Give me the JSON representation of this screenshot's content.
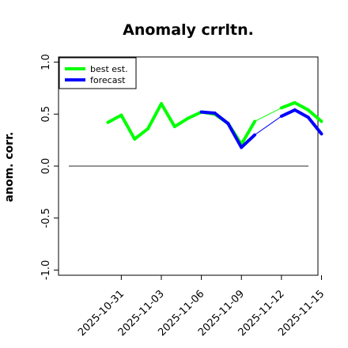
{
  "chart_data": {
    "type": "line",
    "title": "Anomaly crrltn.",
    "xlabel": "",
    "ylabel": "anom. corr.",
    "ylim": [
      -1.05,
      1.05
    ],
    "yticks": [
      -1.0,
      -0.5,
      0.0,
      0.5,
      1.0
    ],
    "ytick_labels": [
      "-1.0",
      "-0.5",
      "0.0",
      "0.5",
      "1.0"
    ],
    "xlim": [
      "2025-10-29",
      "2025-11-15"
    ],
    "xticks": [
      "2025-10-31",
      "2025-11-03",
      "2025-11-06",
      "2025-11-09",
      "2025-11-12",
      "2025-11-15"
    ],
    "xtick_labels": [
      "2025-10-31",
      "2025-11-03",
      "2025-11-06",
      "2025-11-09",
      "2025-11-12",
      "2025-11-15"
    ],
    "highlighted_xtick": "2025-11-06",
    "highlight_color": "#2e8b2e",
    "reference_line": 0.0,
    "grid": false,
    "legend_position": "top-left",
    "series": [
      {
        "name": "best est.",
        "color": "#00ff00",
        "x": [
          "2025-10-30",
          "2025-10-31",
          "2025-11-01",
          "2025-11-02",
          "2025-11-03",
          "2025-11-04",
          "2025-11-05",
          "2025-11-06",
          "2025-11-07",
          "2025-11-08",
          "2025-11-09",
          "2025-11-10",
          "2025-11-12",
          "2025-11-13",
          "2025-11-14",
          "2025-11-15"
        ],
        "y": [
          0.42,
          0.49,
          0.26,
          0.36,
          0.6,
          0.38,
          0.46,
          0.52,
          0.5,
          0.41,
          0.21,
          0.43,
          0.56,
          0.61,
          0.54,
          0.43
        ]
      },
      {
        "name": "forecast",
        "color": "#0000ff",
        "x": [
          "2025-11-06",
          "2025-11-07",
          "2025-11-08",
          "2025-11-09",
          "2025-11-10",
          "2025-11-12",
          "2025-11-13",
          "2025-11-14",
          "2025-11-15"
        ],
        "y": [
          0.52,
          0.51,
          0.41,
          0.18,
          0.3,
          0.48,
          0.54,
          0.47,
          0.31
        ]
      }
    ]
  }
}
